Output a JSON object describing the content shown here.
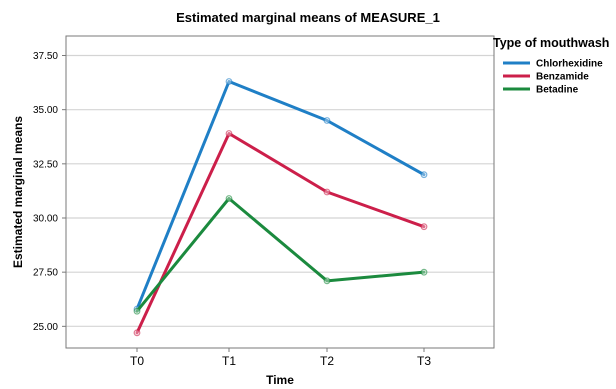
{
  "chart_data": {
    "type": "line",
    "title": "Estimated marginal means of MEASURE_1",
    "xlabel": "Time",
    "ylabel": "Estimated marginal means",
    "categories": [
      "T0",
      "T1",
      "T2",
      "T3"
    ],
    "ylim": [
      24.0,
      38.4
    ],
    "yticks": [
      "25.00",
      "27.50",
      "30.00",
      "32.50",
      "35.00",
      "37.50"
    ],
    "grid": "horizontal",
    "legend_title": "Type of mouthwash",
    "legend_position": "top-right",
    "series": [
      {
        "name": "Chlorhexidine",
        "color": "#1f7fc6",
        "values": [
          25.8,
          36.3,
          34.5,
          32.0
        ]
      },
      {
        "name": "Benzamide",
        "color": "#cc1f4a",
        "values": [
          24.7,
          33.9,
          31.2,
          29.6
        ]
      },
      {
        "name": "Betadine",
        "color": "#1b8a3e",
        "values": [
          25.7,
          30.9,
          27.1,
          27.5
        ]
      }
    ]
  }
}
